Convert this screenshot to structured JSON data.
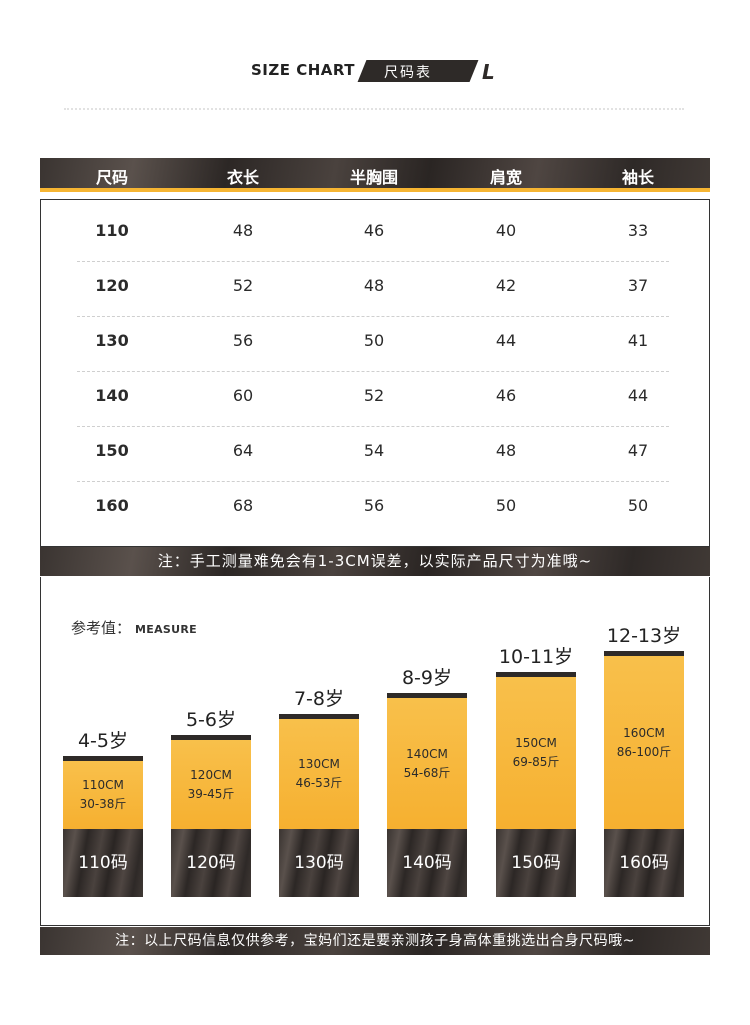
{
  "header": {
    "title_en": "SIZE CHART",
    "title_cn": "尺码表",
    "logo_letter": "L"
  },
  "table": {
    "columns": [
      "尺码",
      "衣长",
      "半胸围",
      "肩宽",
      "袖长"
    ],
    "rows": [
      [
        "110",
        "48",
        "46",
        "40",
        "33"
      ],
      [
        "120",
        "52",
        "48",
        "42",
        "37"
      ],
      [
        "130",
        "56",
        "50",
        "44",
        "41"
      ],
      [
        "140",
        "60",
        "52",
        "46",
        "44"
      ],
      [
        "150",
        "64",
        "54",
        "48",
        "47"
      ],
      [
        "160",
        "68",
        "56",
        "50",
        "50"
      ]
    ]
  },
  "note_top": "注：手工测量难免会有1-3CM误差，以实际产品尺寸为准哦~",
  "measure": {
    "label": "参考值：",
    "label_en": "MEASURE",
    "bars": [
      {
        "age": "4-5岁",
        "height": "110CM",
        "weight": "30-38斤",
        "size": "110码",
        "level": 1
      },
      {
        "age": "5-6岁",
        "height": "120CM",
        "weight": "39-45斤",
        "size": "120码",
        "level": 2
      },
      {
        "age": "7-8岁",
        "height": "130CM",
        "weight": "46-53斤",
        "size": "130码",
        "level": 3
      },
      {
        "age": "8-9岁",
        "height": "140CM",
        "weight": "54-68斤",
        "size": "140码",
        "level": 4
      },
      {
        "age": "10-11岁",
        "height": "150CM",
        "weight": "69-85斤",
        "size": "150码",
        "level": 5
      },
      {
        "age": "12-13岁",
        "height": "160CM",
        "weight": "86-100斤",
        "size": "160码",
        "level": 6
      }
    ]
  },
  "note_bottom": "注：以上尺码信息仅供参考，宝妈们还是要亲测孩子身高体重挑选出合身尺码哦~",
  "colors": {
    "accent": "#f6b532",
    "dark": "#2e2a28"
  }
}
